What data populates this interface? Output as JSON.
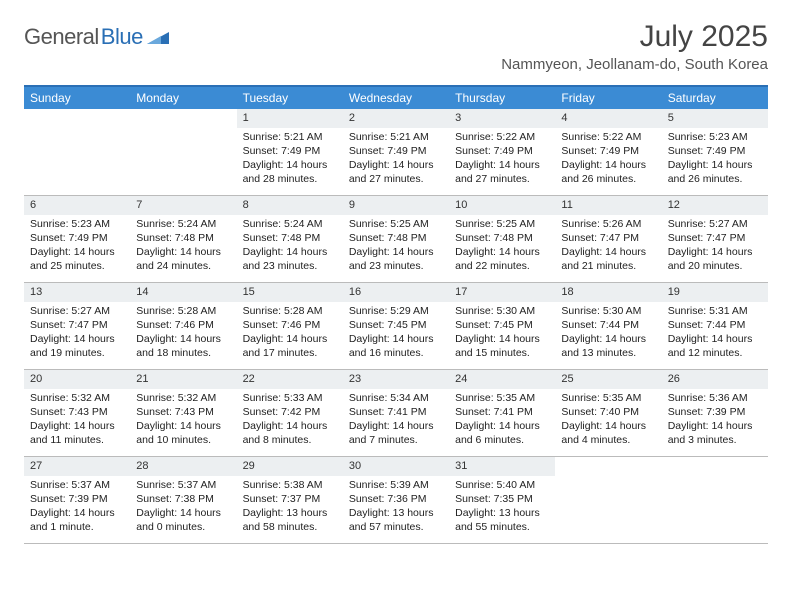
{
  "brand": {
    "general": "General",
    "blue": "Blue"
  },
  "title": "July 2025",
  "location": "Nammyeon, Jeollanam-do, South Korea",
  "colors": {
    "header_bar": "#3b8bd4",
    "border_top": "#2a6fb5",
    "daynum_bg": "#eceff1",
    "text": "#222222"
  },
  "dow": [
    "Sunday",
    "Monday",
    "Tuesday",
    "Wednesday",
    "Thursday",
    "Friday",
    "Saturday"
  ],
  "weeks": [
    [
      null,
      null,
      {
        "n": "1",
        "sr": "Sunrise: 5:21 AM",
        "ss": "Sunset: 7:49 PM",
        "dl": "Daylight: 14 hours and 28 minutes."
      },
      {
        "n": "2",
        "sr": "Sunrise: 5:21 AM",
        "ss": "Sunset: 7:49 PM",
        "dl": "Daylight: 14 hours and 27 minutes."
      },
      {
        "n": "3",
        "sr": "Sunrise: 5:22 AM",
        "ss": "Sunset: 7:49 PM",
        "dl": "Daylight: 14 hours and 27 minutes."
      },
      {
        "n": "4",
        "sr": "Sunrise: 5:22 AM",
        "ss": "Sunset: 7:49 PM",
        "dl": "Daylight: 14 hours and 26 minutes."
      },
      {
        "n": "5",
        "sr": "Sunrise: 5:23 AM",
        "ss": "Sunset: 7:49 PM",
        "dl": "Daylight: 14 hours and 26 minutes."
      }
    ],
    [
      {
        "n": "6",
        "sr": "Sunrise: 5:23 AM",
        "ss": "Sunset: 7:49 PM",
        "dl": "Daylight: 14 hours and 25 minutes."
      },
      {
        "n": "7",
        "sr": "Sunrise: 5:24 AM",
        "ss": "Sunset: 7:48 PM",
        "dl": "Daylight: 14 hours and 24 minutes."
      },
      {
        "n": "8",
        "sr": "Sunrise: 5:24 AM",
        "ss": "Sunset: 7:48 PM",
        "dl": "Daylight: 14 hours and 23 minutes."
      },
      {
        "n": "9",
        "sr": "Sunrise: 5:25 AM",
        "ss": "Sunset: 7:48 PM",
        "dl": "Daylight: 14 hours and 23 minutes."
      },
      {
        "n": "10",
        "sr": "Sunrise: 5:25 AM",
        "ss": "Sunset: 7:48 PM",
        "dl": "Daylight: 14 hours and 22 minutes."
      },
      {
        "n": "11",
        "sr": "Sunrise: 5:26 AM",
        "ss": "Sunset: 7:47 PM",
        "dl": "Daylight: 14 hours and 21 minutes."
      },
      {
        "n": "12",
        "sr": "Sunrise: 5:27 AM",
        "ss": "Sunset: 7:47 PM",
        "dl": "Daylight: 14 hours and 20 minutes."
      }
    ],
    [
      {
        "n": "13",
        "sr": "Sunrise: 5:27 AM",
        "ss": "Sunset: 7:47 PM",
        "dl": "Daylight: 14 hours and 19 minutes."
      },
      {
        "n": "14",
        "sr": "Sunrise: 5:28 AM",
        "ss": "Sunset: 7:46 PM",
        "dl": "Daylight: 14 hours and 18 minutes."
      },
      {
        "n": "15",
        "sr": "Sunrise: 5:28 AM",
        "ss": "Sunset: 7:46 PM",
        "dl": "Daylight: 14 hours and 17 minutes."
      },
      {
        "n": "16",
        "sr": "Sunrise: 5:29 AM",
        "ss": "Sunset: 7:45 PM",
        "dl": "Daylight: 14 hours and 16 minutes."
      },
      {
        "n": "17",
        "sr": "Sunrise: 5:30 AM",
        "ss": "Sunset: 7:45 PM",
        "dl": "Daylight: 14 hours and 15 minutes."
      },
      {
        "n": "18",
        "sr": "Sunrise: 5:30 AM",
        "ss": "Sunset: 7:44 PM",
        "dl": "Daylight: 14 hours and 13 minutes."
      },
      {
        "n": "19",
        "sr": "Sunrise: 5:31 AM",
        "ss": "Sunset: 7:44 PM",
        "dl": "Daylight: 14 hours and 12 minutes."
      }
    ],
    [
      {
        "n": "20",
        "sr": "Sunrise: 5:32 AM",
        "ss": "Sunset: 7:43 PM",
        "dl": "Daylight: 14 hours and 11 minutes."
      },
      {
        "n": "21",
        "sr": "Sunrise: 5:32 AM",
        "ss": "Sunset: 7:43 PM",
        "dl": "Daylight: 14 hours and 10 minutes."
      },
      {
        "n": "22",
        "sr": "Sunrise: 5:33 AM",
        "ss": "Sunset: 7:42 PM",
        "dl": "Daylight: 14 hours and 8 minutes."
      },
      {
        "n": "23",
        "sr": "Sunrise: 5:34 AM",
        "ss": "Sunset: 7:41 PM",
        "dl": "Daylight: 14 hours and 7 minutes."
      },
      {
        "n": "24",
        "sr": "Sunrise: 5:35 AM",
        "ss": "Sunset: 7:41 PM",
        "dl": "Daylight: 14 hours and 6 minutes."
      },
      {
        "n": "25",
        "sr": "Sunrise: 5:35 AM",
        "ss": "Sunset: 7:40 PM",
        "dl": "Daylight: 14 hours and 4 minutes."
      },
      {
        "n": "26",
        "sr": "Sunrise: 5:36 AM",
        "ss": "Sunset: 7:39 PM",
        "dl": "Daylight: 14 hours and 3 minutes."
      }
    ],
    [
      {
        "n": "27",
        "sr": "Sunrise: 5:37 AM",
        "ss": "Sunset: 7:39 PM",
        "dl": "Daylight: 14 hours and 1 minute."
      },
      {
        "n": "28",
        "sr": "Sunrise: 5:37 AM",
        "ss": "Sunset: 7:38 PM",
        "dl": "Daylight: 14 hours and 0 minutes."
      },
      {
        "n": "29",
        "sr": "Sunrise: 5:38 AM",
        "ss": "Sunset: 7:37 PM",
        "dl": "Daylight: 13 hours and 58 minutes."
      },
      {
        "n": "30",
        "sr": "Sunrise: 5:39 AM",
        "ss": "Sunset: 7:36 PM",
        "dl": "Daylight: 13 hours and 57 minutes."
      },
      {
        "n": "31",
        "sr": "Sunrise: 5:40 AM",
        "ss": "Sunset: 7:35 PM",
        "dl": "Daylight: 13 hours and 55 minutes."
      },
      null,
      null
    ]
  ]
}
